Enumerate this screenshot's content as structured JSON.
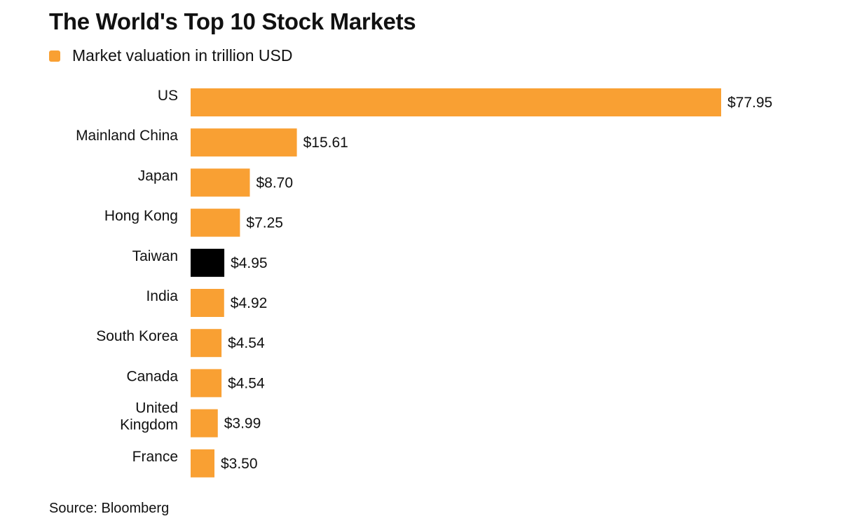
{
  "title": "The World's Top 10 Stock Markets",
  "legend": {
    "label": "Market valuation in trillion USD",
    "color": "#F9A033"
  },
  "source": "Source: Bloomberg",
  "colors": {
    "bar": "#F9A033",
    "highlight": "#000000",
    "text": "#111111"
  },
  "chart_data": {
    "type": "bar",
    "orientation": "horizontal",
    "categories": [
      "US",
      "Mainland China",
      "Japan",
      "Hong Kong",
      "Taiwan",
      "India",
      "South Korea",
      "Canada",
      "United Kingdom",
      "France"
    ],
    "category_lines": [
      [
        "US"
      ],
      [
        "Mainland China"
      ],
      [
        "Japan"
      ],
      [
        "Hong Kong"
      ],
      [
        "Taiwan"
      ],
      [
        "India"
      ],
      [
        "South Korea"
      ],
      [
        "Canada"
      ],
      [
        "United",
        "Kingdom"
      ],
      [
        "France"
      ]
    ],
    "series": [
      {
        "name": "Market valuation in trillion USD",
        "values": [
          77.95,
          15.61,
          8.7,
          7.25,
          4.95,
          4.92,
          4.54,
          4.54,
          3.99,
          3.5
        ]
      }
    ],
    "data_labels": [
      "$77.95",
      "$15.61",
      "$8.70",
      "$7.25",
      "$4.95",
      "$4.92",
      "$4.54",
      "$4.54",
      "$3.99",
      "$3.50"
    ],
    "highlight": "Taiwan",
    "xlim": [
      0,
      77.95
    ],
    "grid": false,
    "legend_position": "top-left",
    "title": "The World's Top 10 Stock Markets",
    "xlabel": "",
    "ylabel": ""
  }
}
